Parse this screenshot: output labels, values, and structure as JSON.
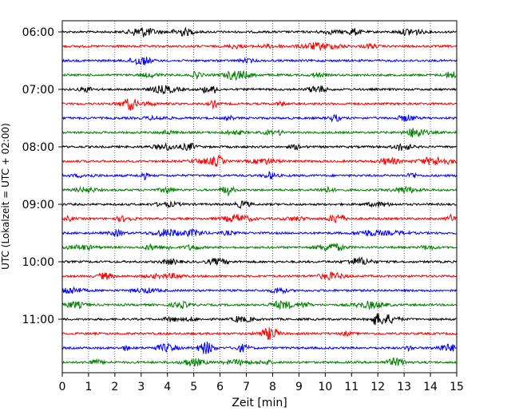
{
  "chart_data": {
    "type": "line",
    "title": "",
    "xlabel": "Zeit  [min]",
    "ylabel": "UTC (Lokalzeit = UTC + 02:00)",
    "xlim": [
      0,
      15
    ],
    "x_ticks": [
      "0",
      "1",
      "2",
      "3",
      "4",
      "5",
      "6",
      "7",
      "8",
      "9",
      "10",
      "11",
      "12",
      "13",
      "14",
      "15"
    ],
    "y_ticks": [
      "06:00",
      "07:00",
      "08:00",
      "09:00",
      "10:00",
      "11:00"
    ],
    "grid": "vertical dotted",
    "trace_interval_min": 15,
    "colors_cycle": [
      "#000000",
      "#ff0000",
      "#0000ff",
      "#008000"
    ],
    "traces": [
      {
        "start": "06:00",
        "color": "#000000"
      },
      {
        "start": "06:15",
        "color": "#ff0000"
      },
      {
        "start": "06:30",
        "color": "#0000ff"
      },
      {
        "start": "06:45",
        "color": "#008000"
      },
      {
        "start": "07:00",
        "color": "#000000"
      },
      {
        "start": "07:15",
        "color": "#ff0000"
      },
      {
        "start": "07:30",
        "color": "#0000ff"
      },
      {
        "start": "07:45",
        "color": "#008000"
      },
      {
        "start": "08:00",
        "color": "#000000"
      },
      {
        "start": "08:15",
        "color": "#ff0000"
      },
      {
        "start": "08:30",
        "color": "#0000ff"
      },
      {
        "start": "08:45",
        "color": "#008000"
      },
      {
        "start": "09:00",
        "color": "#000000"
      },
      {
        "start": "09:15",
        "color": "#ff0000"
      },
      {
        "start": "09:30",
        "color": "#0000ff"
      },
      {
        "start": "09:45",
        "color": "#008000"
      },
      {
        "start": "10:00",
        "color": "#000000"
      },
      {
        "start": "10:15",
        "color": "#ff0000"
      },
      {
        "start": "10:30",
        "color": "#0000ff"
      },
      {
        "start": "10:45",
        "color": "#008000"
      },
      {
        "start": "11:00",
        "color": "#000000"
      },
      {
        "start": "11:15",
        "color": "#ff0000"
      },
      {
        "start": "11:30",
        "color": "#0000ff"
      },
      {
        "start": "11:45",
        "color": "#008000"
      }
    ]
  }
}
